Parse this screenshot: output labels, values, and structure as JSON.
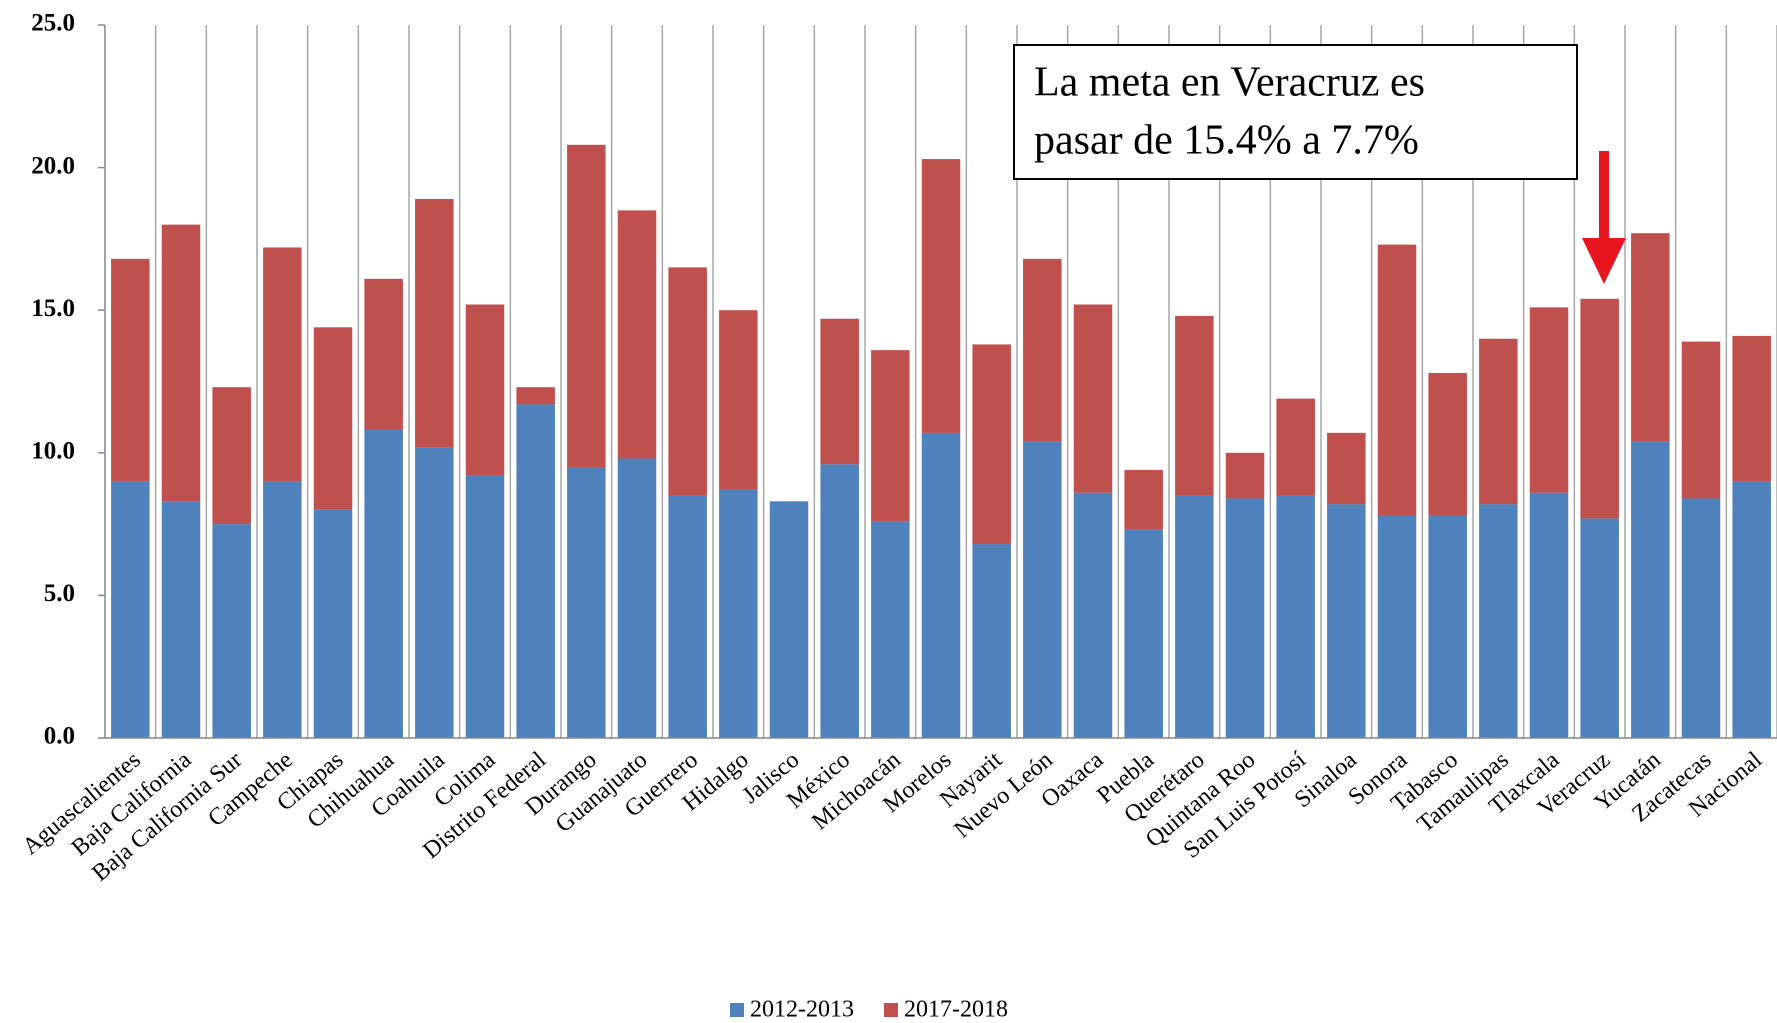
{
  "chart_data": {
    "type": "stacked_bar",
    "categories": [
      "Aguascalientes",
      "Baja California",
      "Baja California Sur",
      "Campeche",
      "Chiapas",
      "Chihuahua",
      "Coahuila",
      "Colima",
      "Distrito Federal",
      "Durango",
      "Guanajuato",
      "Guerrero",
      "Hidalgo",
      "Jalisco",
      "México",
      "Michoacán",
      "Morelos",
      "Nayarit",
      "Nuevo León",
      "Oaxaca",
      "Puebla",
      "Querétaro",
      "Quintana Roo",
      "San Luis Potosí",
      "Sinaloa",
      "Sonora",
      "Tabasco",
      "Tamaulipas",
      "Tlaxcala",
      "Veracruz",
      "Yucatán",
      "Zacatecas",
      "Nacional"
    ],
    "series": [
      {
        "name": "2012-2013",
        "color": "#4f81bd",
        "values": [
          9.0,
          8.3,
          7.5,
          9.0,
          8.0,
          10.8,
          10.2,
          9.2,
          11.7,
          9.5,
          9.8,
          8.5,
          8.7,
          8.3,
          9.6,
          7.6,
          10.7,
          6.8,
          10.4,
          8.6,
          7.3,
          8.5,
          8.4,
          8.5,
          8.2,
          7.8,
          7.8,
          8.2,
          8.6,
          7.7,
          10.4,
          8.4,
          9.0
        ]
      },
      {
        "name": "2017-2018",
        "color": "#c0504d",
        "values": [
          7.8,
          9.7,
          4.8,
          8.2,
          6.4,
          5.3,
          8.7,
          6.0,
          0.6,
          11.3,
          8.7,
          8.0,
          6.3,
          null,
          5.1,
          6.0,
          9.6,
          7.0,
          6.4,
          6.6,
          2.1,
          6.3,
          1.6,
          3.4,
          2.5,
          9.5,
          5.0,
          5.8,
          6.5,
          7.7,
          7.3,
          5.5,
          5.1
        ]
      }
    ],
    "ylim": [
      0,
      25
    ],
    "yticks": [
      {
        "value": 0,
        "label": "0.0"
      },
      {
        "value": 5,
        "label": "5.0"
      },
      {
        "value": 10,
        "label": "10.0"
      },
      {
        "value": 15,
        "label": "15.0"
      },
      {
        "value": 20,
        "label": "20.0"
      },
      {
        "value": 25,
        "label": "25.0"
      }
    ],
    "annotation": [
      "La meta en Veracruz es",
      "pasar de 15.4% a 7.7%"
    ],
    "legend": "bottom"
  }
}
